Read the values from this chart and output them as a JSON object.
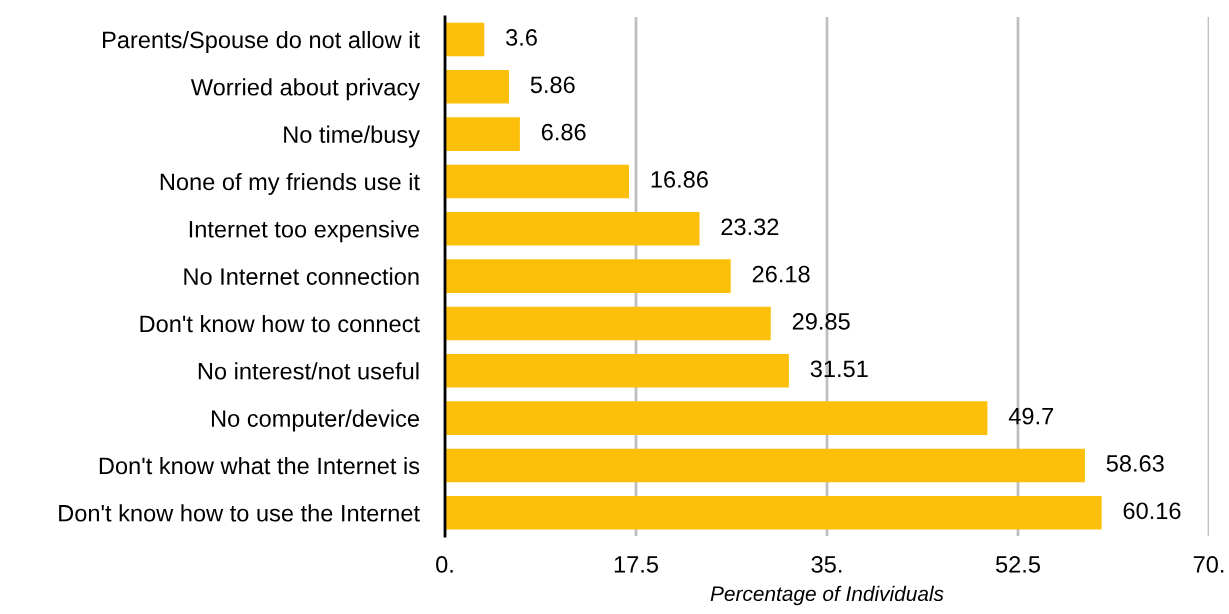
{
  "chart_data": {
    "type": "bar",
    "orientation": "horizontal",
    "categories": [
      "Parents/Spouse do not allow it",
      "Worried about privacy",
      "No time/busy",
      "None of my friends use it",
      "Internet too expensive",
      "No Internet connection",
      "Don't know how to connect",
      "No interest/not useful",
      "No computer/device",
      "Don't know what the Internet is",
      "Don't know how to use the Internet"
    ],
    "values": [
      3.6,
      5.86,
      6.86,
      16.86,
      23.32,
      26.18,
      29.85,
      31.51,
      49.7,
      58.63,
      60.16
    ],
    "color": "#fcc00a",
    "xlabel": "Percentage of Individuals",
    "xlim": [
      0,
      70
    ],
    "xticks": [
      {
        "value": 0,
        "label": "0."
      },
      17.5,
      {
        "value": 35,
        "label": "35."
      },
      52.5,
      {
        "value": 70,
        "label": "70."
      }
    ],
    "grid": "x",
    "data_labels": true
  }
}
